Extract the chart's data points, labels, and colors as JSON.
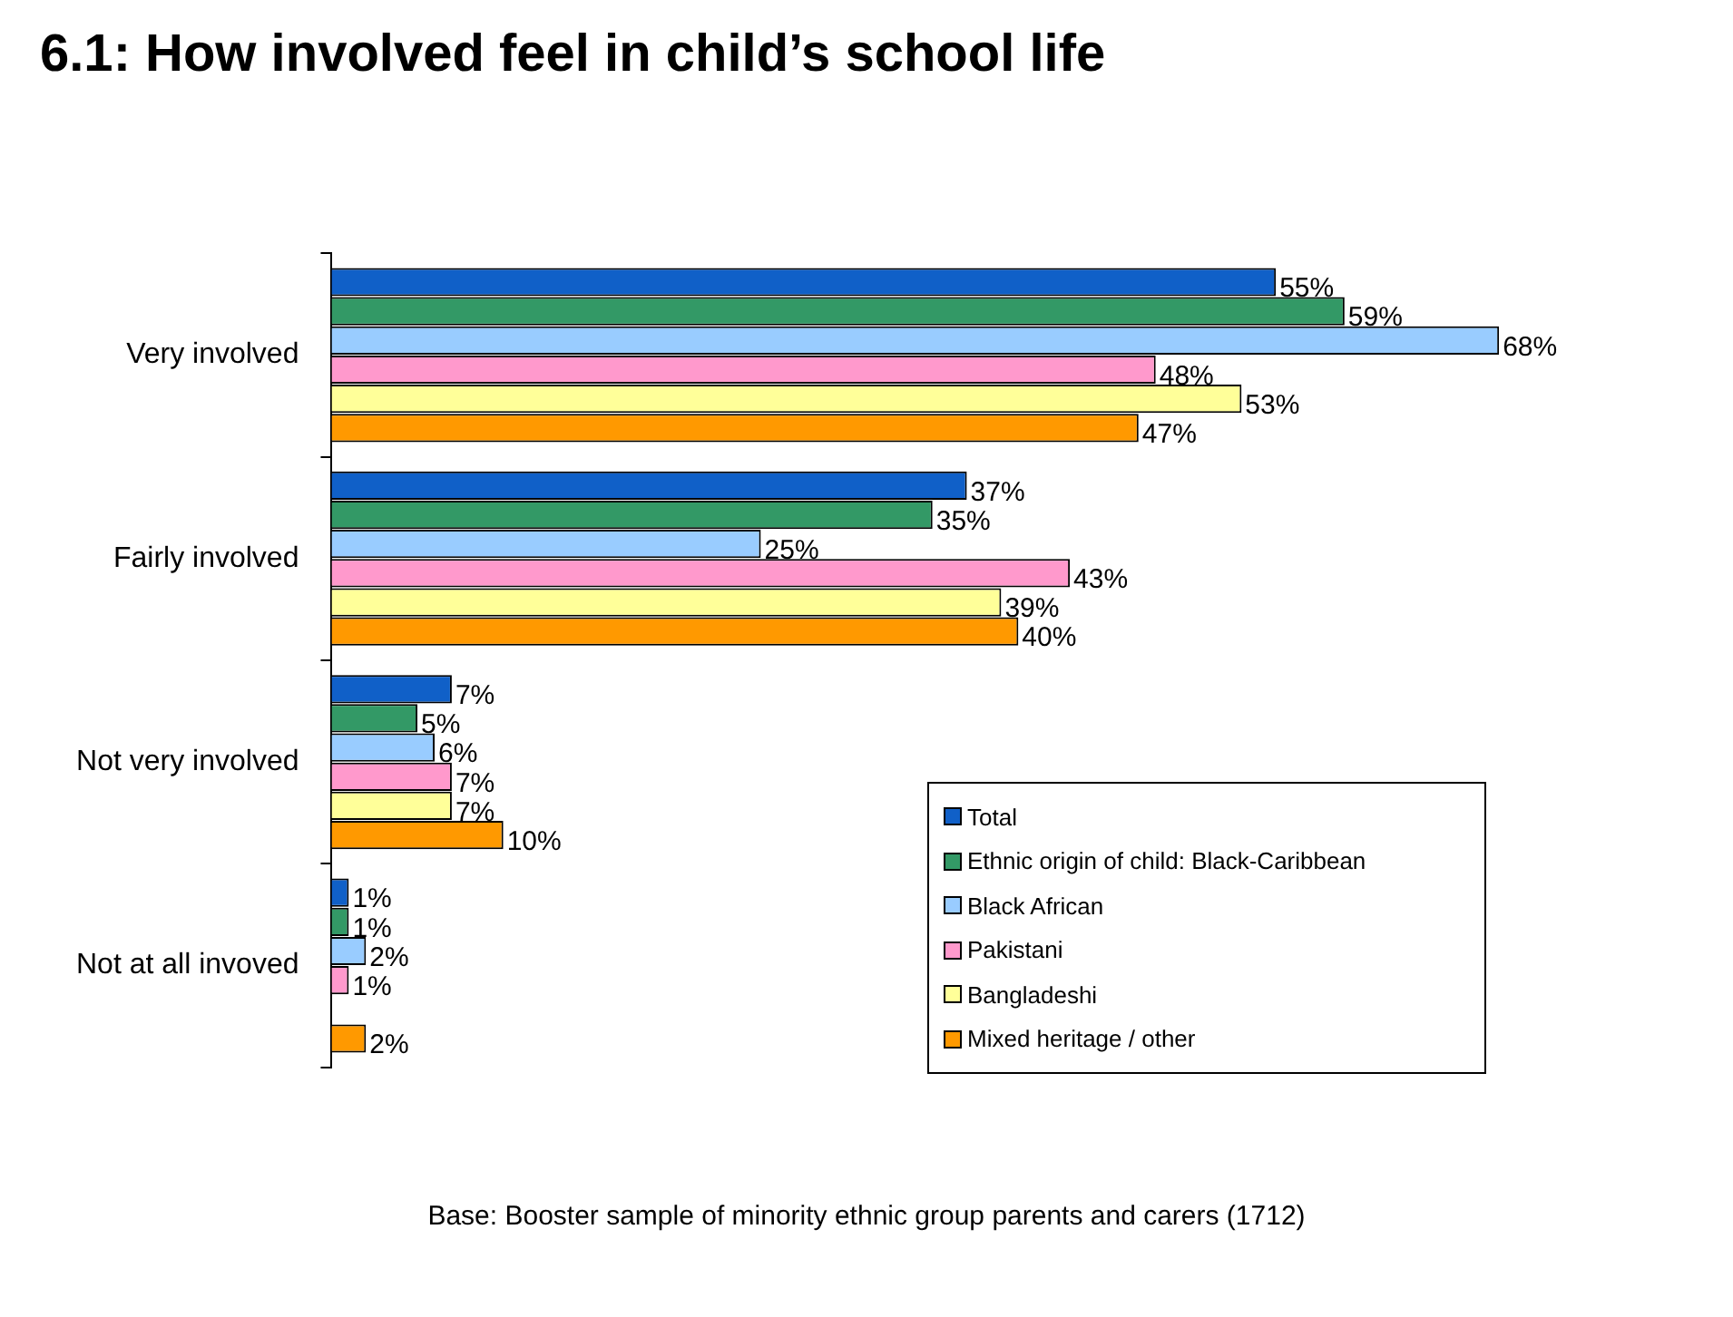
{
  "chart_data": {
    "type": "bar",
    "orientation": "horizontal",
    "title": "6.1:  How involved feel in child’s school life",
    "categories": [
      "Very involved",
      "Fairly involved",
      "Not very involved",
      "Not at all invoved"
    ],
    "series": [
      {
        "name": "Total",
        "color": "#1060c8",
        "values": [
          55,
          37,
          7,
          1
        ],
        "value_labels": [
          "55%",
          "37%",
          "7%",
          "1%"
        ]
      },
      {
        "name": "Ethnic origin of child: Black-Caribbean",
        "color": "#339966",
        "values": [
          59,
          35,
          5,
          1
        ],
        "value_labels": [
          "59%",
          "35%",
          "5%",
          "1%"
        ]
      },
      {
        "name": "Black African",
        "color": "#99ccff",
        "values": [
          68,
          25,
          6,
          2
        ],
        "value_labels": [
          "68%",
          "25%",
          "6%",
          "2%"
        ]
      },
      {
        "name": "Pakistani",
        "color": "#ff99cc",
        "values": [
          48,
          43,
          7,
          1
        ],
        "value_labels": [
          "48%",
          "43%",
          "7%",
          "1%"
        ]
      },
      {
        "name": "Bangladeshi",
        "color": "#ffff99",
        "values": [
          53,
          39,
          7,
          null
        ],
        "value_labels": [
          "53%",
          "39%",
          "7%",
          null
        ]
      },
      {
        "name": "Mixed heritage / other",
        "color": "#ff9900",
        "values": [
          47,
          40,
          10,
          2
        ],
        "value_labels": [
          "47%",
          "40%",
          "10%",
          "2%"
        ]
      }
    ],
    "legend": "bottom right",
    "grid": false,
    "tick_labels": "y",
    "annotations": [
      "Base:  Booster sample of minority ethnic group parents and carers (1712)"
    ]
  }
}
